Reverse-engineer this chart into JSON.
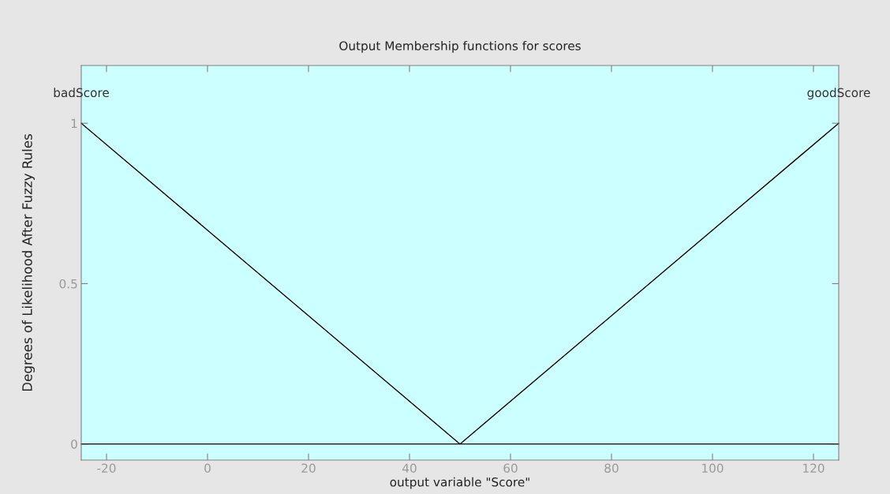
{
  "chart_data": {
    "type": "line",
    "title": "Output Membership functions for scores",
    "xlabel": "output variable \"Score\"",
    "ylabel": "Degrees of Likelihood After Fuzzy Rules",
    "x": [
      -25,
      50,
      125
    ],
    "series": [
      {
        "name": "badScore",
        "color": "#000000",
        "values": [
          1,
          0,
          0
        ]
      },
      {
        "name": "goodScore",
        "color": "#000000",
        "values": [
          0,
          0,
          1
        ]
      }
    ],
    "xlim": [
      -25,
      125
    ],
    "ylim": [
      -0.05,
      1.18
    ],
    "xticks": [
      -20,
      0,
      20,
      40,
      60,
      80,
      100,
      120
    ],
    "yticks": [
      0,
      {
        "value": 0.5,
        "label": "0.5"
      },
      1
    ],
    "grid": false,
    "legend": false,
    "marker": "none",
    "line_style": "solid"
  }
}
